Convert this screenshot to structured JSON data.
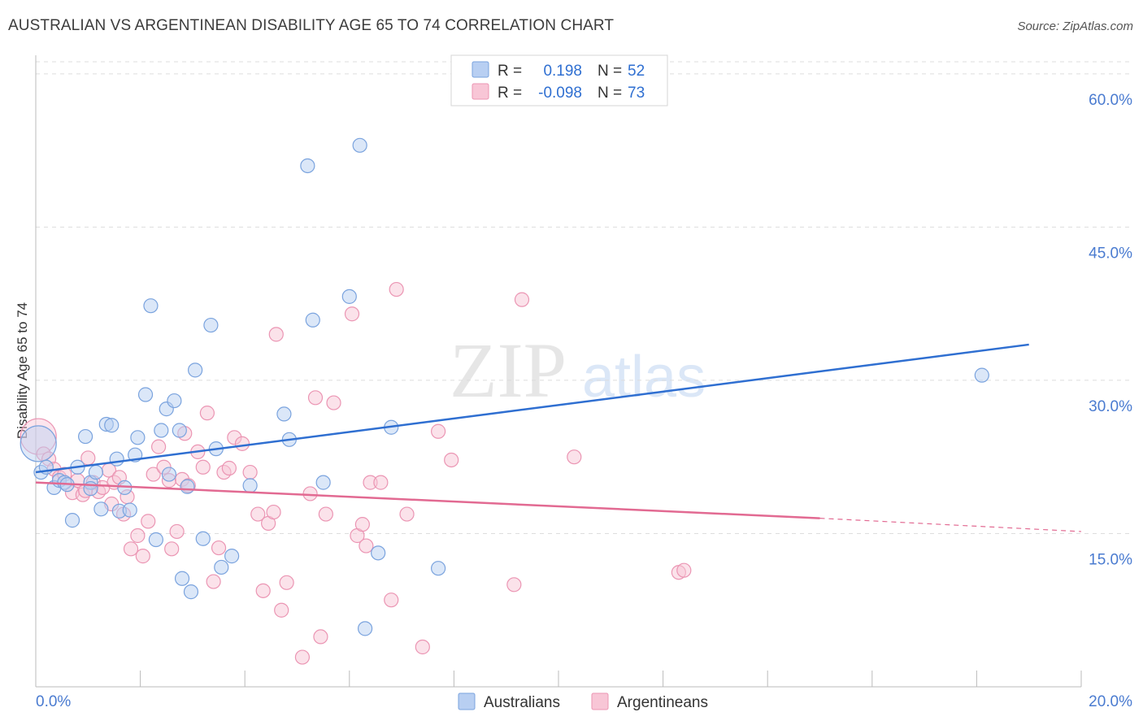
{
  "header": {
    "title": "AUSTRALIAN VS ARGENTINEAN DISABILITY AGE 65 TO 74 CORRELATION CHART",
    "source": "Source: ZipAtlas.com"
  },
  "colors": {
    "blue_fill": "#b8cff2",
    "blue_stroke": "#7aa3de",
    "blue_line": "#2f6fd1",
    "pink_fill": "#f8c6d6",
    "pink_stroke": "#eb95b3",
    "pink_line": "#e26a92",
    "tick_text": "#4a7bd0",
    "grid": "#dddddd"
  },
  "legend": {
    "r_label": "R =",
    "n_label": "N =",
    "rows": [
      {
        "series": "Australians",
        "r": "0.198",
        "n": "52"
      },
      {
        "series": "Argentineans",
        "r": "-0.098",
        "n": "73"
      }
    ]
  },
  "watermark": {
    "part1": "ZIP",
    "part2": "atlas"
  },
  "chart_data": {
    "type": "scatter",
    "title": "AUSTRALIAN VS ARGENTINEAN DISABILITY AGE 65 TO 74 CORRELATION CHART",
    "xlabel": "",
    "ylabel": "Disability Age 65 to 74",
    "xlim": [
      0,
      20
    ],
    "ylim": [
      0,
      61.5
    ],
    "x_tick_labels": [
      "0.0%",
      "20.0%"
    ],
    "y_ticks": [
      15,
      30,
      45,
      60
    ],
    "y_tick_labels": [
      "15.0%",
      "30.0%",
      "45.0%",
      "60.0%"
    ],
    "legend_position": "top-center",
    "series": [
      {
        "name": "Australians",
        "r": 0.198,
        "n": 52,
        "trend": {
          "x": [
            0,
            19.0
          ],
          "y": [
            21.0,
            33.5
          ]
        },
        "points": [
          {
            "x": 0.05,
            "y": 23.8,
            "big": true
          },
          {
            "x": 0.1,
            "y": 21.0
          },
          {
            "x": 0.2,
            "y": 21.5
          },
          {
            "x": 0.35,
            "y": 19.5
          },
          {
            "x": 0.45,
            "y": 20.2
          },
          {
            "x": 0.55,
            "y": 20.0
          },
          {
            "x": 0.7,
            "y": 16.3
          },
          {
            "x": 0.8,
            "y": 21.5
          },
          {
            "x": 0.95,
            "y": 24.5
          },
          {
            "x": 1.05,
            "y": 20.0
          },
          {
            "x": 1.15,
            "y": 21.0
          },
          {
            "x": 1.25,
            "y": 17.4
          },
          {
            "x": 1.35,
            "y": 25.7
          },
          {
            "x": 1.45,
            "y": 25.6
          },
          {
            "x": 1.55,
            "y": 22.3
          },
          {
            "x": 1.6,
            "y": 17.2
          },
          {
            "x": 1.7,
            "y": 19.5
          },
          {
            "x": 1.8,
            "y": 17.3
          },
          {
            "x": 1.9,
            "y": 22.7
          },
          {
            "x": 1.95,
            "y": 24.4
          },
          {
            "x": 2.1,
            "y": 28.6
          },
          {
            "x": 2.2,
            "y": 37.3
          },
          {
            "x": 2.3,
            "y": 14.4
          },
          {
            "x": 2.4,
            "y": 25.1
          },
          {
            "x": 2.5,
            "y": 27.2
          },
          {
            "x": 2.55,
            "y": 20.8
          },
          {
            "x": 2.65,
            "y": 28.0
          },
          {
            "x": 2.75,
            "y": 25.1
          },
          {
            "x": 2.8,
            "y": 10.6
          },
          {
            "x": 2.9,
            "y": 19.6
          },
          {
            "x": 2.97,
            "y": 9.3
          },
          {
            "x": 3.05,
            "y": 31.0
          },
          {
            "x": 3.2,
            "y": 14.5
          },
          {
            "x": 3.35,
            "y": 35.4
          },
          {
            "x": 3.45,
            "y": 23.3
          },
          {
            "x": 3.55,
            "y": 11.7
          },
          {
            "x": 3.75,
            "y": 12.8
          },
          {
            "x": 4.1,
            "y": 19.7
          },
          {
            "x": 4.75,
            "y": 26.7
          },
          {
            "x": 4.85,
            "y": 24.2
          },
          {
            "x": 5.2,
            "y": 51.0
          },
          {
            "x": 5.3,
            "y": 35.9
          },
          {
            "x": 5.5,
            "y": 20.0
          },
          {
            "x": 6.0,
            "y": 38.2
          },
          {
            "x": 6.2,
            "y": 53.0
          },
          {
            "x": 6.3,
            "y": 5.7
          },
          {
            "x": 6.55,
            "y": 13.1
          },
          {
            "x": 6.8,
            "y": 25.4
          },
          {
            "x": 7.7,
            "y": 11.6
          },
          {
            "x": 18.1,
            "y": 30.5
          },
          {
            "x": 0.6,
            "y": 19.8
          },
          {
            "x": 1.05,
            "y": 19.4
          }
        ]
      },
      {
        "name": "Argentineans",
        "r": -0.098,
        "n": 73,
        "trend": {
          "x": [
            0,
            15.0
          ],
          "y": [
            20.0,
            16.5
          ]
        },
        "trend_dashed": {
          "x": [
            15.0,
            20.0
          ],
          "y": [
            16.5,
            15.2
          ]
        },
        "points": [
          {
            "x": 0.05,
            "y": 24.5,
            "big": true
          },
          {
            "x": 0.15,
            "y": 22.8
          },
          {
            "x": 0.25,
            "y": 22.3
          },
          {
            "x": 0.35,
            "y": 21.3
          },
          {
            "x": 0.45,
            "y": 20.5
          },
          {
            "x": 0.55,
            "y": 20.8
          },
          {
            "x": 0.7,
            "y": 19.0
          },
          {
            "x": 0.8,
            "y": 20.2
          },
          {
            "x": 0.9,
            "y": 18.8
          },
          {
            "x": 1.0,
            "y": 22.4
          },
          {
            "x": 1.1,
            "y": 20.0
          },
          {
            "x": 1.2,
            "y": 19.1
          },
          {
            "x": 1.28,
            "y": 19.5
          },
          {
            "x": 1.4,
            "y": 21.2
          },
          {
            "x": 1.5,
            "y": 20.0
          },
          {
            "x": 1.6,
            "y": 20.5
          },
          {
            "x": 1.68,
            "y": 16.9
          },
          {
            "x": 1.75,
            "y": 18.6
          },
          {
            "x": 1.82,
            "y": 13.5
          },
          {
            "x": 1.95,
            "y": 14.8
          },
          {
            "x": 2.05,
            "y": 12.8
          },
          {
            "x": 2.15,
            "y": 16.2
          },
          {
            "x": 2.25,
            "y": 20.8
          },
          {
            "x": 2.35,
            "y": 23.5
          },
          {
            "x": 2.45,
            "y": 21.5
          },
          {
            "x": 2.55,
            "y": 20.2
          },
          {
            "x": 2.6,
            "y": 13.5
          },
          {
            "x": 2.7,
            "y": 15.2
          },
          {
            "x": 2.8,
            "y": 20.3
          },
          {
            "x": 2.85,
            "y": 24.8
          },
          {
            "x": 2.92,
            "y": 19.7
          },
          {
            "x": 3.1,
            "y": 23.0
          },
          {
            "x": 3.2,
            "y": 21.5
          },
          {
            "x": 3.28,
            "y": 26.8
          },
          {
            "x": 3.4,
            "y": 10.3
          },
          {
            "x": 3.5,
            "y": 13.6
          },
          {
            "x": 3.6,
            "y": 21.0
          },
          {
            "x": 3.7,
            "y": 21.4
          },
          {
            "x": 3.8,
            "y": 24.4
          },
          {
            "x": 3.95,
            "y": 23.8
          },
          {
            "x": 4.1,
            "y": 21.0
          },
          {
            "x": 4.25,
            "y": 16.9
          },
          {
            "x": 4.35,
            "y": 9.4
          },
          {
            "x": 4.45,
            "y": 16.0
          },
          {
            "x": 4.55,
            "y": 17.1
          },
          {
            "x": 4.6,
            "y": 34.5
          },
          {
            "x": 4.7,
            "y": 7.5
          },
          {
            "x": 4.8,
            "y": 10.2
          },
          {
            "x": 5.1,
            "y": 2.9
          },
          {
            "x": 5.25,
            "y": 18.9
          },
          {
            "x": 5.35,
            "y": 28.3
          },
          {
            "x": 5.45,
            "y": 4.9
          },
          {
            "x": 5.55,
            "y": 16.9
          },
          {
            "x": 5.7,
            "y": 27.8
          },
          {
            "x": 6.05,
            "y": 36.5
          },
          {
            "x": 6.15,
            "y": 14.8
          },
          {
            "x": 6.25,
            "y": 15.9
          },
          {
            "x": 6.32,
            "y": 13.8
          },
          {
            "x": 6.4,
            "y": 20.0
          },
          {
            "x": 6.6,
            "y": 20.0
          },
          {
            "x": 6.8,
            "y": 8.5
          },
          {
            "x": 6.9,
            "y": 38.9
          },
          {
            "x": 7.1,
            "y": 16.9
          },
          {
            "x": 7.4,
            "y": 3.9
          },
          {
            "x": 7.7,
            "y": 25.0
          },
          {
            "x": 7.95,
            "y": 22.2
          },
          {
            "x": 9.15,
            "y": 10.0
          },
          {
            "x": 9.3,
            "y": 37.9
          },
          {
            "x": 10.3,
            "y": 22.5
          },
          {
            "x": 12.3,
            "y": 11.2
          },
          {
            "x": 12.4,
            "y": 11.4
          },
          {
            "x": 0.95,
            "y": 19.2
          },
          {
            "x": 1.45,
            "y": 17.9
          }
        ]
      }
    ]
  }
}
